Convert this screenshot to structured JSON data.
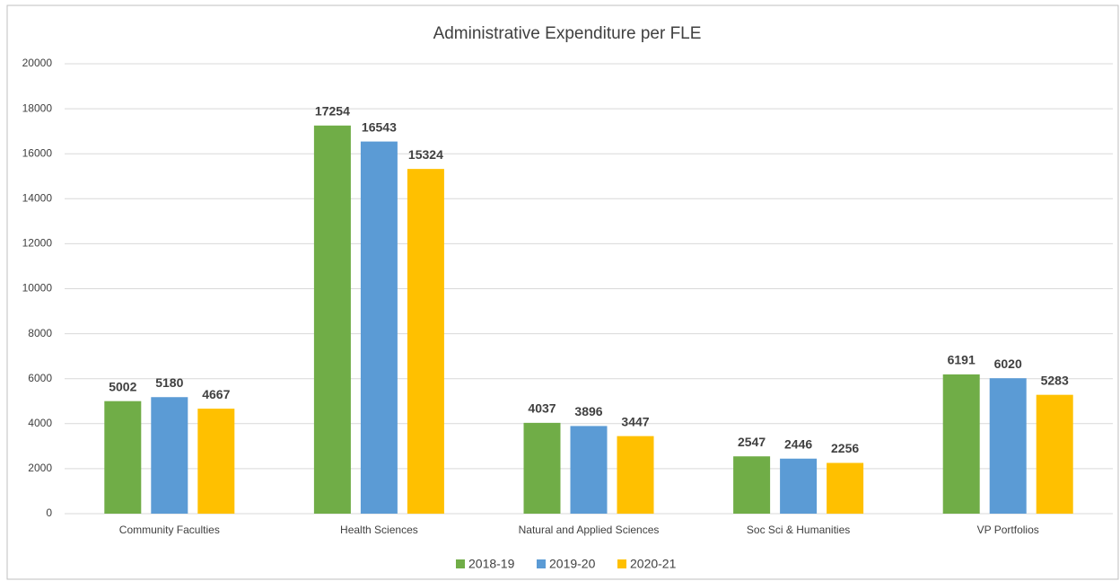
{
  "chart_data": {
    "type": "bar",
    "title": "Administrative Expenditure per FLE",
    "categories": [
      "Community Faculties",
      "Health Sciences",
      "Natural and Applied Sciences",
      "Soc Sci & Humanities",
      "VP Portfolios"
    ],
    "series": [
      {
        "name": "2018-19",
        "color": "#70ad47",
        "values": [
          5002,
          17254,
          4037,
          2547,
          6191
        ]
      },
      {
        "name": "2019-20",
        "color": "#5b9bd5",
        "values": [
          5180,
          16543,
          3896,
          2446,
          6020
        ]
      },
      {
        "name": "2020-21",
        "color": "#ffc000",
        "values": [
          4667,
          15324,
          3447,
          2256,
          5283
        ]
      }
    ],
    "ylim": [
      0,
      20000
    ],
    "yticks": [
      0,
      2000,
      4000,
      6000,
      8000,
      10000,
      12000,
      14000,
      16000,
      18000,
      20000
    ],
    "grid": true,
    "legend": "bottom"
  }
}
